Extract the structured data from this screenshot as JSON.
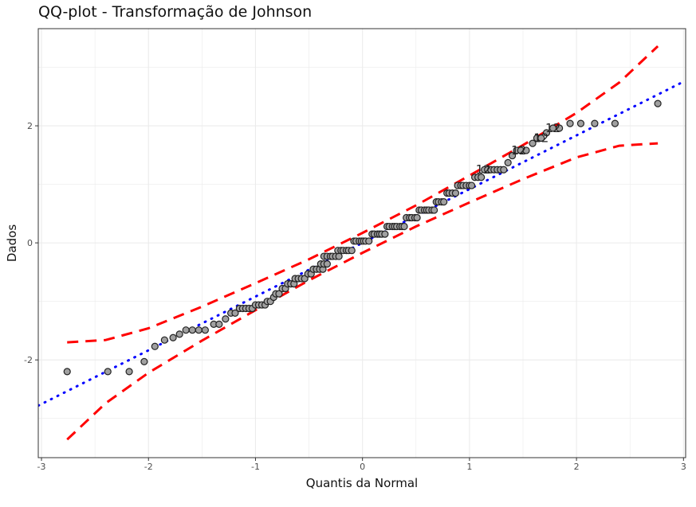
{
  "chart_data": {
    "type": "scatter",
    "title": "QQ-plot - Transformação de Johnson",
    "xlabel": "Quantis da Normal",
    "ylabel": "Dados",
    "xlim": [
      -3.03,
      3.02
    ],
    "ylim": [
      -3.67,
      3.66
    ],
    "xticks": [
      -3,
      -2,
      -1,
      0,
      1,
      2,
      3
    ],
    "yticks": [
      -2,
      0,
      2
    ],
    "grid": true,
    "colors": {
      "points_fill": "#a0a0a0",
      "points_stroke": "#222222",
      "reference_line": "#0000ff",
      "envelope": "#ff0000"
    },
    "points_by_level": [
      {
        "y": -2.2,
        "x": [
          -2.76,
          -2.38,
          -2.18
        ]
      },
      {
        "y": -2.03,
        "x": [
          -2.04
        ]
      },
      {
        "y": -1.77,
        "x": [
          -1.94
        ]
      },
      {
        "y": -1.66,
        "x": [
          -1.85
        ]
      },
      {
        "y": -1.62,
        "x": [
          -1.77
        ]
      },
      {
        "y": -1.56,
        "x": [
          -1.71
        ]
      },
      {
        "y": -1.49,
        "x": [
          -1.65,
          -1.59,
          -1.53,
          -1.47
        ]
      },
      {
        "y": -1.39,
        "x": [
          -1.39,
          -1.34
        ]
      },
      {
        "y": -1.3,
        "x": [
          -1.28
        ]
      },
      {
        "y": -1.2,
        "x": [
          -1.23,
          -1.19
        ]
      },
      {
        "y": -1.12,
        "x": [
          -1.15,
          -1.12,
          -1.09,
          -1.06,
          -1.03
        ]
      },
      {
        "y": -1.06,
        "x": [
          -1.0,
          -0.97,
          -0.94,
          -0.91
        ]
      },
      {
        "y": -1.0,
        "x": [
          -0.89,
          -0.86
        ]
      },
      {
        "y": -0.93,
        "x": [
          -0.83
        ]
      },
      {
        "y": -0.87,
        "x": [
          -0.81,
          -0.78
        ]
      },
      {
        "y": -0.78,
        "x": [
          -0.75,
          -0.72
        ]
      },
      {
        "y": -0.7,
        "x": [
          -0.7,
          -0.67,
          -0.64
        ]
      },
      {
        "y": -0.61,
        "x": [
          -0.63,
          -0.6,
          -0.57,
          -0.54
        ]
      },
      {
        "y": -0.53,
        "x": [
          -0.51,
          -0.48
        ]
      },
      {
        "y": -0.45,
        "x": [
          -0.46,
          -0.43,
          -0.4,
          -0.37
        ]
      },
      {
        "y": -0.36,
        "x": [
          -0.39,
          -0.36,
          -0.33
        ]
      },
      {
        "y": -0.23,
        "x": [
          -0.36,
          -0.33,
          -0.3,
          -0.28,
          -0.25,
          -0.22
        ]
      },
      {
        "y": -0.13,
        "x": [
          -0.23,
          -0.2,
          -0.18,
          -0.15,
          -0.13,
          -0.1
        ]
      },
      {
        "y": 0.03,
        "x": [
          -0.08,
          -0.06,
          -0.03,
          -0.01,
          0.01,
          0.03,
          0.06
        ]
      },
      {
        "y": 0.15,
        "x": [
          0.09,
          0.11,
          0.14,
          0.16,
          0.18,
          0.21
        ]
      },
      {
        "y": 0.28,
        "x": [
          0.23,
          0.25,
          0.28,
          0.3,
          0.32,
          0.35,
          0.37,
          0.39
        ]
      },
      {
        "y": 0.43,
        "x": [
          0.41,
          0.44,
          0.46,
          0.49,
          0.51
        ]
      },
      {
        "y": 0.56,
        "x": [
          0.53,
          0.55,
          0.58,
          0.6,
          0.62,
          0.65,
          0.67
        ]
      },
      {
        "y": 0.7,
        "x": [
          0.69,
          0.71,
          0.74,
          0.76
        ]
      },
      {
        "y": 0.85,
        "x": [
          0.79,
          0.81,
          0.84,
          0.87
        ]
      },
      {
        "y": 0.98,
        "x": [
          0.89,
          0.92,
          0.94,
          0.97,
          1.0,
          1.02
        ]
      },
      {
        "y": 1.12,
        "x": [
          1.05,
          1.08,
          1.11
        ]
      },
      {
        "y": 1.25,
        "x": [
          1.14,
          1.17,
          1.2,
          1.23,
          1.26,
          1.29,
          1.32
        ]
      },
      {
        "y": 1.37,
        "x": [
          1.36
        ]
      },
      {
        "y": 1.49,
        "x": [
          1.4
        ]
      },
      {
        "y": 1.58,
        "x": [
          1.44,
          1.48,
          1.53
        ]
      },
      {
        "y": 1.7,
        "x": [
          1.59
        ]
      },
      {
        "y": 1.79,
        "x": [
          1.63,
          1.67
        ]
      },
      {
        "y": 1.88,
        "x": [
          1.72
        ]
      },
      {
        "y": 1.96,
        "x": [
          1.78,
          1.84
        ]
      },
      {
        "y": 2.04,
        "x": [
          1.94,
          2.04,
          2.17,
          2.36
        ]
      },
      {
        "y": 2.38,
        "x": [
          2.76
        ]
      }
    ],
    "point_labels": [
      {
        "text": "12",
        "x": 1.13,
        "y": 1.25
      },
      {
        "text": "12",
        "x": 1.46,
        "y": 1.58
      },
      {
        "text": "12",
        "x": 1.67,
        "y": 1.79
      },
      {
        "text": "12",
        "x": 1.78,
        "y": 1.96
      }
    ],
    "reference_line": {
      "slope": 0.918,
      "intercept": 0.0
    },
    "envelope": {
      "x": [
        -2.76,
        -2.4,
        -2.0,
        -1.5,
        -1.0,
        -0.5,
        0.0,
        0.5,
        1.0,
        1.5,
        2.0,
        2.4,
        2.76
      ],
      "upper": [
        -1.7,
        -1.66,
        -1.46,
        -1.09,
        -0.69,
        -0.28,
        0.17,
        0.64,
        1.15,
        1.67,
        2.22,
        2.74,
        3.36
      ],
      "lower": [
        -3.36,
        -2.74,
        -2.22,
        -1.67,
        -1.15,
        -0.64,
        -0.17,
        0.28,
        0.69,
        1.09,
        1.46,
        1.66,
        1.7
      ]
    }
  }
}
